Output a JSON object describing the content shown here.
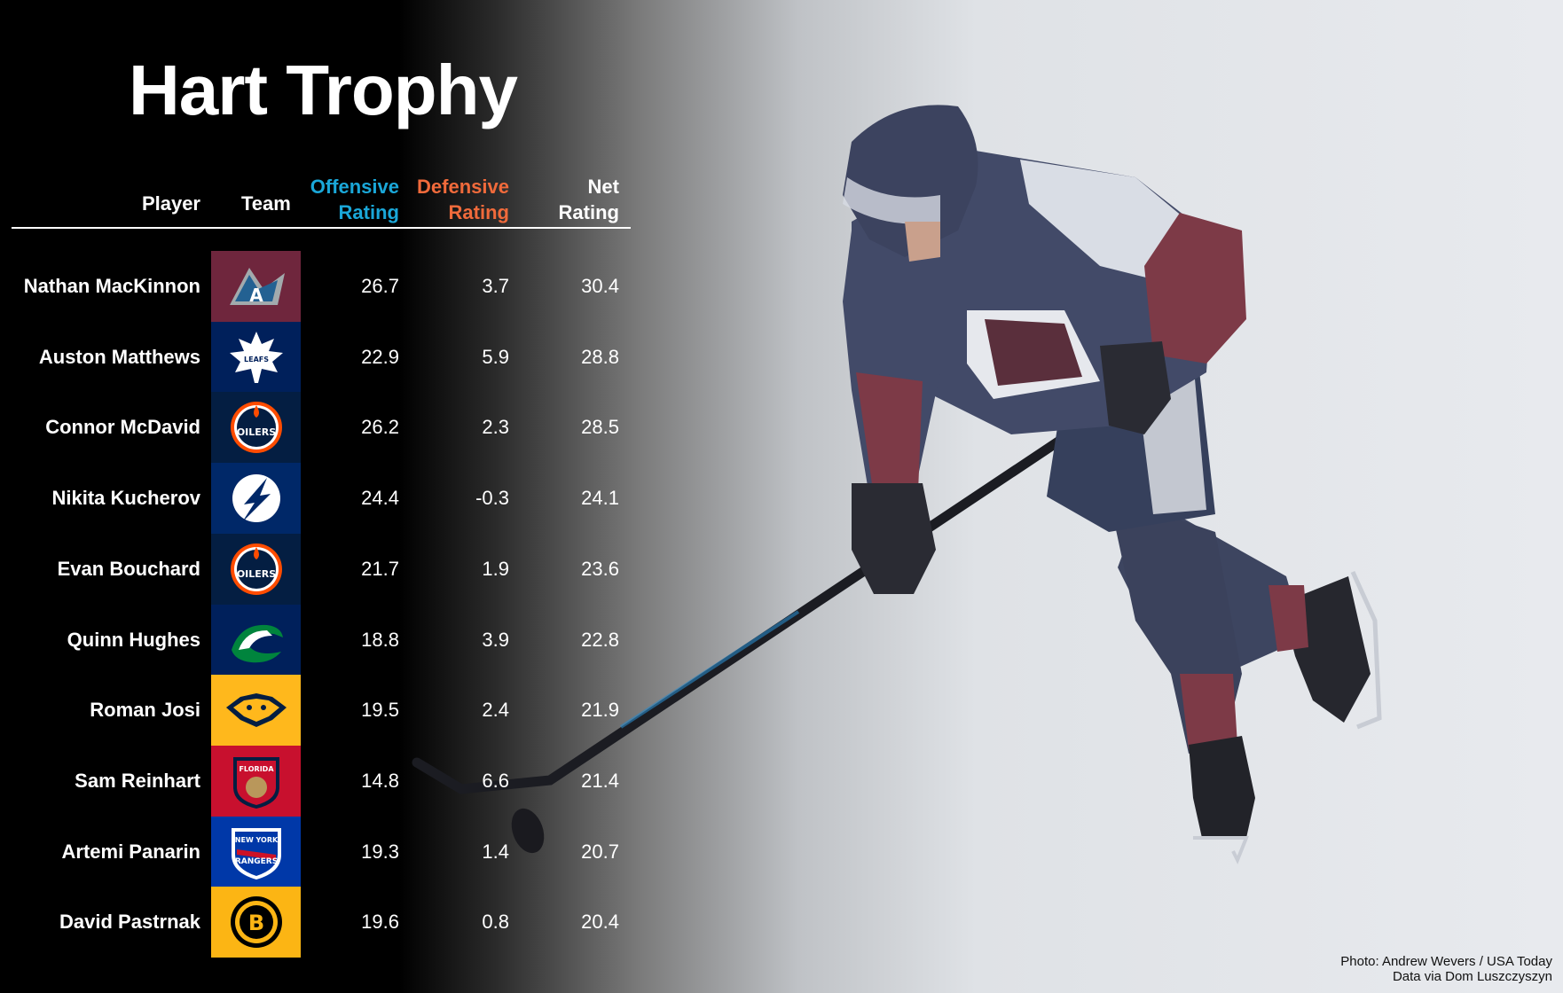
{
  "title": "Hart Trophy",
  "columns": {
    "player": "Player",
    "team": "Team",
    "offensive": [
      "Offensive",
      "Rating"
    ],
    "defensive": [
      "Defensive",
      "Rating"
    ],
    "net": [
      "Net",
      "Rating"
    ]
  },
  "colors": {
    "offensive": "#1aa7d8",
    "defensive": "#f06a3b",
    "background": "#000000"
  },
  "chart_data": {
    "type": "table",
    "title": "Hart Trophy",
    "columns": [
      "Player",
      "Team",
      "Offensive Rating",
      "Defensive Rating",
      "Net Rating"
    ],
    "rows": [
      {
        "player": "Nathan MacKinnon",
        "team": "colorado-avalanche-logo",
        "team_bg": "#6f263d",
        "offensive": "26.7",
        "defensive": "3.7",
        "net": "30.4"
      },
      {
        "player": "Auston Matthews",
        "team": "toronto-maple-leafs-logo",
        "team_bg": "#00205b",
        "offensive": "22.9",
        "defensive": "5.9",
        "net": "28.8"
      },
      {
        "player": "Connor McDavid",
        "team": "edmonton-oilers-logo",
        "team_bg": "#041e42",
        "offensive": "26.2",
        "defensive": "2.3",
        "net": "28.5"
      },
      {
        "player": "Nikita Kucherov",
        "team": "tampa-bay-lightning-logo",
        "team_bg": "#002868",
        "offensive": "24.4",
        "defensive": "-0.3",
        "net": "24.1"
      },
      {
        "player": "Evan Bouchard",
        "team": "edmonton-oilers-logo",
        "team_bg": "#041e42",
        "offensive": "21.7",
        "defensive": "1.9",
        "net": "23.6"
      },
      {
        "player": "Quinn Hughes",
        "team": "vancouver-canucks-logo",
        "team_bg": "#00205b",
        "offensive": "18.8",
        "defensive": "3.9",
        "net": "22.8"
      },
      {
        "player": "Roman Josi",
        "team": "nashville-predators-logo",
        "team_bg": "#ffb81c",
        "offensive": "19.5",
        "defensive": "2.4",
        "net": "21.9"
      },
      {
        "player": "Sam Reinhart",
        "team": "florida-panthers-logo",
        "team_bg": "#c8102e",
        "offensive": "14.8",
        "defensive": "6.6",
        "net": "21.4"
      },
      {
        "player": "Artemi Panarin",
        "team": "new-york-rangers-logo",
        "team_bg": "#0038a8",
        "offensive": "19.3",
        "defensive": "1.4",
        "net": "20.7"
      },
      {
        "player": "David Pastrnak",
        "team": "boston-bruins-logo",
        "team_bg": "#fcb514",
        "offensive": "19.6",
        "defensive": "0.8",
        "net": "20.4"
      }
    ]
  },
  "credits": {
    "photo": "Photo: Andrew Wevers / USA Today",
    "data": "Data via Dom Luszczyszyn"
  }
}
